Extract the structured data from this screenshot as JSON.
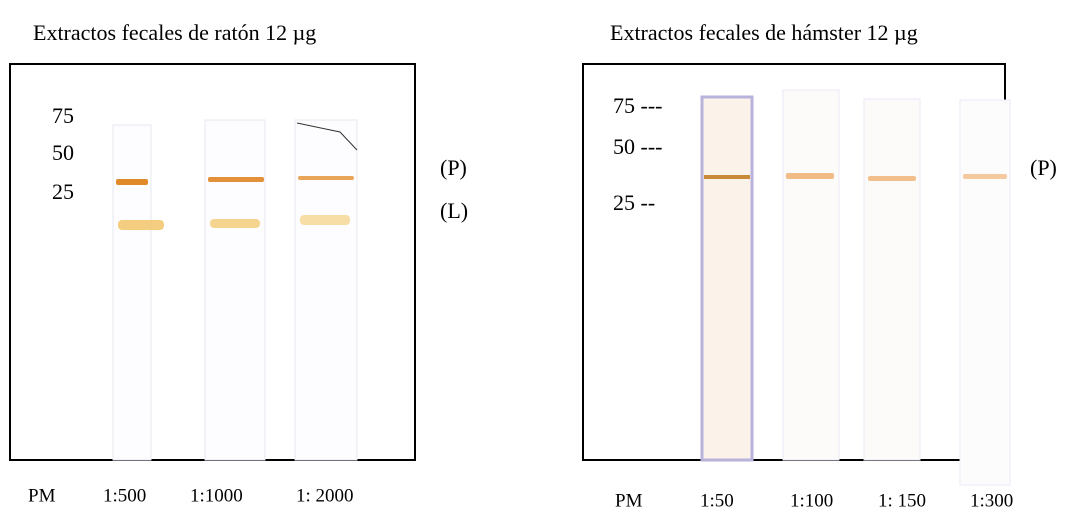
{
  "panels": [
    {
      "title": "Extractos fecales de ratón 12 µg",
      "markers": [
        "75",
        "50",
        "25"
      ],
      "band_labels": [
        "(P)",
        "(L)"
      ],
      "lanes": [
        "PM",
        "1:500",
        "1:1000",
        "1: 2000"
      ]
    },
    {
      "title": "Extractos fecales de hámster 12 µg",
      "markers": [
        "75 ---",
        "50 ---",
        "25 --"
      ],
      "band_labels": [
        "(P)"
      ],
      "lanes": [
        "PM",
        "1:50",
        "1:100",
        "1: 150",
        "1:300"
      ]
    }
  ]
}
